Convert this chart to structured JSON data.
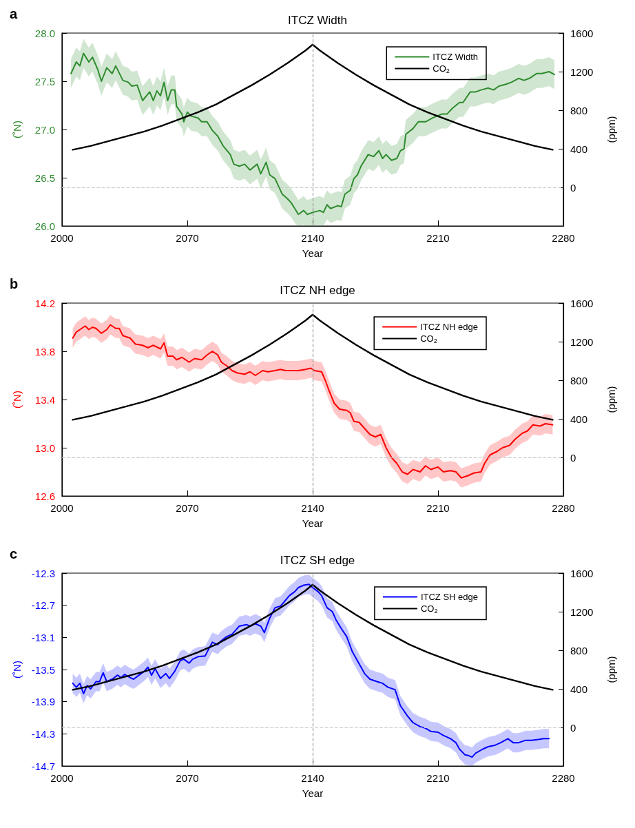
{
  "chart_data": [
    {
      "type": "line",
      "title": "ITCZ Width",
      "xlabel": "Year",
      "ylabel": "(˚N)",
      "y2label": "(ppm)",
      "annotations": [
        "a"
      ],
      "legend": "top right",
      "grid": false,
      "xlim": [
        2000,
        2280
      ],
      "xticks": [
        2000,
        2070,
        2140,
        2210,
        2280
      ],
      "ylim": [
        26,
        28
      ],
      "yticks": [
        {
          "value": 26,
          "label": "26.0"
        },
        26.5,
        {
          "value": 27,
          "label": "27.0"
        },
        27.5,
        {
          "value": 28,
          "label": "28.0"
        }
      ],
      "y2lim": [
        -400,
        1600
      ],
      "y2ticks": [
        0,
        400,
        800,
        1200,
        1600
      ],
      "ref_lines": [
        {
          "axis": "x",
          "value": 2140,
          "color": "#999999",
          "line_style": "dashed"
        },
        {
          "axis": "y2",
          "value": 0,
          "color": "#c8c8c8",
          "line_style": "dashed"
        }
      ],
      "series": [
        {
          "name": "ITCZ Width",
          "color": "#2e8b2e",
          "x": [
            2005,
            2008,
            2010,
            2012,
            2015,
            2017,
            2020,
            2022,
            2025,
            2028,
            2030,
            2034,
            2037,
            2039,
            2042,
            2045,
            2049,
            2051,
            2053,
            2055,
            2057,
            2059,
            2061,
            2063,
            2064,
            2067,
            2068,
            2070,
            2072,
            2076,
            2078,
            2081,
            2084,
            2087,
            2090,
            2094,
            2096,
            2099,
            2102,
            2105,
            2109,
            2111,
            2114,
            2116,
            2119,
            2121,
            2123,
            2126,
            2128,
            2130,
            2132,
            2135,
            2137,
            2140,
            2144,
            2146,
            2148,
            2150,
            2154,
            2156,
            2158,
            2161,
            2163,
            2165,
            2167,
            2171,
            2174,
            2177,
            2179,
            2181,
            2184,
            2187,
            2189,
            2191,
            2192,
            2196,
            2199,
            2203,
            2207,
            2212,
            2215,
            2218,
            2222,
            2224,
            2228,
            2231,
            2234,
            2238,
            2241,
            2244,
            2248,
            2251,
            2255,
            2258,
            2261,
            2265,
            2268,
            2272,
            2275
          ],
          "values": [
            27.58,
            27.7,
            27.66,
            27.79,
            27.7,
            27.75,
            27.62,
            27.5,
            27.64,
            27.58,
            27.66,
            27.51,
            27.49,
            27.45,
            27.46,
            27.3,
            27.39,
            27.3,
            27.4,
            27.35,
            27.49,
            27.3,
            27.41,
            27.41,
            27.24,
            27.16,
            27.08,
            27.18,
            27.14,
            27.12,
            27.08,
            27.08,
            26.99,
            26.93,
            26.83,
            26.74,
            26.64,
            26.62,
            26.64,
            26.58,
            26.64,
            26.54,
            26.66,
            26.53,
            26.49,
            26.41,
            26.33,
            26.28,
            26.24,
            26.18,
            26.12,
            26.16,
            26.12,
            26.14,
            26.16,
            26.14,
            26.22,
            26.18,
            26.21,
            26.2,
            26.33,
            26.37,
            26.49,
            26.53,
            26.62,
            26.74,
            26.72,
            26.78,
            26.7,
            26.74,
            26.68,
            26.7,
            26.78,
            26.8,
            26.95,
            27.01,
            27.08,
            27.08,
            27.12,
            27.16,
            27.16,
            27.22,
            27.28,
            27.28,
            27.39,
            27.39,
            27.41,
            27.43,
            27.41,
            27.45,
            27.47,
            27.49,
            27.53,
            27.51,
            27.53,
            27.58,
            27.58,
            27.6,
            27.57
          ],
          "lower": [
            27.43,
            27.55,
            27.51,
            27.64,
            27.55,
            27.6,
            27.47,
            27.35,
            27.49,
            27.43,
            27.51,
            27.36,
            27.34,
            27.3,
            27.31,
            27.15,
            27.24,
            27.15,
            27.25,
            27.2,
            27.34,
            27.15,
            27.26,
            27.26,
            27.09,
            27.01,
            26.93,
            27.03,
            26.99,
            26.97,
            26.93,
            26.93,
            26.84,
            26.78,
            26.68,
            26.59,
            26.49,
            26.47,
            26.49,
            26.43,
            26.49,
            26.39,
            26.51,
            26.38,
            26.34,
            26.26,
            26.18,
            26.13,
            26.09,
            26.03,
            26.0,
            26.01,
            26.0,
            26.0,
            26.01,
            26.0,
            26.07,
            26.03,
            26.06,
            26.05,
            26.18,
            26.22,
            26.34,
            26.38,
            26.47,
            26.59,
            26.57,
            26.63,
            26.55,
            26.59,
            26.53,
            26.55,
            26.63,
            26.65,
            26.8,
            26.86,
            26.93,
            26.93,
            26.97,
            27.01,
            27.01,
            27.07,
            27.13,
            27.13,
            27.24,
            27.24,
            27.26,
            27.28,
            27.26,
            27.3,
            27.32,
            27.34,
            27.38,
            27.36,
            27.38,
            27.43,
            27.43,
            27.45,
            27.42
          ],
          "upper": [
            27.73,
            27.85,
            27.81,
            27.94,
            27.85,
            27.9,
            27.77,
            27.65,
            27.79,
            27.73,
            27.81,
            27.66,
            27.64,
            27.6,
            27.61,
            27.45,
            27.54,
            27.45,
            27.55,
            27.5,
            27.64,
            27.45,
            27.56,
            27.56,
            27.39,
            27.31,
            27.23,
            27.33,
            27.29,
            27.27,
            27.23,
            27.23,
            27.14,
            27.08,
            26.98,
            26.89,
            26.79,
            26.77,
            26.79,
            26.73,
            26.79,
            26.69,
            26.81,
            26.68,
            26.64,
            26.56,
            26.48,
            26.43,
            26.39,
            26.33,
            26.27,
            26.31,
            26.27,
            26.29,
            26.31,
            26.29,
            26.37,
            26.33,
            26.36,
            26.35,
            26.48,
            26.52,
            26.64,
            26.68,
            26.77,
            26.89,
            26.87,
            26.93,
            26.85,
            26.89,
            26.83,
            26.85,
            26.93,
            26.95,
            27.1,
            27.16,
            27.23,
            27.23,
            27.27,
            27.31,
            27.31,
            27.37,
            27.43,
            27.43,
            27.54,
            27.54,
            27.56,
            27.58,
            27.56,
            27.6,
            27.62,
            27.64,
            27.68,
            27.66,
            27.68,
            27.73,
            27.73,
            27.75,
            27.72
          ]
        },
        {
          "name": "CO$_{2}$",
          "color": "#000000",
          "axis": "y2",
          "x": [
            2006,
            2016,
            2026,
            2036,
            2046,
            2056,
            2066,
            2076,
            2086,
            2096,
            2106,
            2116,
            2126,
            2136,
            2140,
            2144,
            2154,
            2164,
            2174,
            2184,
            2194,
            2204,
            2214,
            2224,
            2234,
            2244,
            2254,
            2264,
            2274
          ],
          "values": [
            390,
            430,
            480,
            530,
            580,
            640,
            710,
            780,
            860,
            960,
            1060,
            1170,
            1290,
            1420,
            1480,
            1420,
            1290,
            1170,
            1060,
            960,
            860,
            780,
            710,
            640,
            580,
            530,
            480,
            430,
            390
          ]
        }
      ]
    },
    {
      "type": "line",
      "title": "ITCZ NH edge",
      "xlabel": "Year",
      "ylabel": "(˚N)",
      "y2label": "(ppm)",
      "annotations": [
        "b"
      ],
      "legend": "top right",
      "grid": false,
      "xlim": [
        2000,
        2280
      ],
      "xticks": [
        2000,
        2070,
        2140,
        2210,
        2280
      ],
      "ylim": [
        12.6,
        14.2
      ],
      "yticks": [
        12.6,
        {
          "value": 13,
          "label": "13.0"
        },
        13.4,
        13.8,
        14.2
      ],
      "y2lim": [
        -400,
        1600
      ],
      "y2ticks": [
        0,
        400,
        800,
        1200,
        1600
      ],
      "ref_lines": [
        {
          "axis": "x",
          "value": 2140,
          "color": "#999999",
          "line_style": "dashed"
        },
        {
          "axis": "y2",
          "value": 0,
          "color": "#c8c8c8",
          "line_style": "dashed"
        }
      ],
      "series": [
        {
          "name": "ITCZ NH edge",
          "color": "#ff0000",
          "x": [
            2006,
            2008,
            2010,
            2013,
            2015,
            2017,
            2019,
            2022,
            2025,
            2027,
            2030,
            2032,
            2034,
            2038,
            2041,
            2045,
            2048,
            2051,
            2055,
            2057,
            2059,
            2062,
            2064,
            2067,
            2071,
            2074,
            2078,
            2081,
            2084,
            2087,
            2089,
            2092,
            2095,
            2098,
            2102,
            2105,
            2108,
            2112,
            2115,
            2119,
            2122,
            2125,
            2129,
            2132,
            2136,
            2139,
            2141,
            2145,
            2147,
            2149,
            2152,
            2155,
            2159,
            2161,
            2163,
            2166,
            2169,
            2172,
            2175,
            2178,
            2181,
            2184,
            2187,
            2190,
            2193,
            2196,
            2200,
            2203,
            2206,
            2210,
            2213,
            2217,
            2220,
            2223,
            2227,
            2230,
            2234,
            2236,
            2239,
            2243,
            2246,
            2250,
            2253,
            2257,
            2260,
            2263,
            2267,
            2270,
            2274
          ],
          "values": [
            13.91,
            13.96,
            13.98,
            14.01,
            13.98,
            14.0,
            13.99,
            13.95,
            13.98,
            14.02,
            13.99,
            13.99,
            13.93,
            13.91,
            13.86,
            13.85,
            13.83,
            13.85,
            13.82,
            13.87,
            13.76,
            13.76,
            13.73,
            13.75,
            13.71,
            13.74,
            13.73,
            13.77,
            13.8,
            13.77,
            13.71,
            13.68,
            13.64,
            13.62,
            13.61,
            13.63,
            13.6,
            13.64,
            13.63,
            13.64,
            13.65,
            13.64,
            13.64,
            13.64,
            13.65,
            13.66,
            13.64,
            13.63,
            13.56,
            13.48,
            13.37,
            13.32,
            13.31,
            13.29,
            13.22,
            13.21,
            13.16,
            13.11,
            13.09,
            13.11,
            13.0,
            12.92,
            12.87,
            12.8,
            12.78,
            12.82,
            12.8,
            12.85,
            12.82,
            12.84,
            12.8,
            12.81,
            12.8,
            12.75,
            12.77,
            12.79,
            12.8,
            12.87,
            12.94,
            12.97,
            13.0,
            13.02,
            13.07,
            13.12,
            13.14,
            13.19,
            13.18,
            13.2,
            13.19
          ],
          "lower": [
            13.83,
            13.88,
            13.9,
            13.93,
            13.9,
            13.92,
            13.91,
            13.87,
            13.9,
            13.94,
            13.91,
            13.91,
            13.85,
            13.83,
            13.78,
            13.77,
            13.75,
            13.77,
            13.74,
            13.79,
            13.68,
            13.68,
            13.65,
            13.67,
            13.63,
            13.66,
            13.65,
            13.69,
            13.72,
            13.69,
            13.63,
            13.6,
            13.56,
            13.54,
            13.53,
            13.55,
            13.52,
            13.56,
            13.55,
            13.56,
            13.57,
            13.56,
            13.56,
            13.56,
            13.57,
            13.58,
            13.56,
            13.55,
            13.48,
            13.4,
            13.29,
            13.24,
            13.23,
            13.21,
            13.14,
            13.13,
            13.08,
            13.03,
            13.01,
            13.03,
            12.92,
            12.84,
            12.79,
            12.72,
            12.7,
            12.74,
            12.72,
            12.77,
            12.74,
            12.76,
            12.72,
            12.73,
            12.72,
            12.67,
            12.69,
            12.71,
            12.72,
            12.79,
            12.86,
            12.89,
            12.92,
            12.94,
            12.99,
            13.04,
            13.06,
            13.11,
            13.1,
            13.12,
            13.11
          ],
          "upper": [
            13.99,
            14.04,
            14.06,
            14.09,
            14.06,
            14.08,
            14.07,
            14.03,
            14.06,
            14.1,
            14.07,
            14.07,
            14.01,
            13.99,
            13.94,
            13.93,
            13.91,
            13.93,
            13.9,
            13.95,
            13.84,
            13.84,
            13.81,
            13.83,
            13.79,
            13.82,
            13.81,
            13.85,
            13.88,
            13.85,
            13.79,
            13.76,
            13.72,
            13.7,
            13.69,
            13.71,
            13.68,
            13.72,
            13.71,
            13.72,
            13.73,
            13.72,
            13.72,
            13.72,
            13.73,
            13.74,
            13.72,
            13.71,
            13.64,
            13.56,
            13.45,
            13.4,
            13.39,
            13.37,
            13.3,
            13.29,
            13.24,
            13.19,
            13.17,
            13.19,
            13.08,
            13.0,
            12.95,
            12.88,
            12.86,
            12.9,
            12.88,
            12.93,
            12.9,
            12.92,
            12.88,
            12.89,
            12.88,
            12.83,
            12.85,
            12.87,
            12.88,
            12.95,
            13.02,
            13.05,
            13.08,
            13.1,
            13.15,
            13.2,
            13.22,
            13.27,
            13.26,
            13.28,
            13.27
          ]
        },
        {
          "name": "CO$_{2}$",
          "color": "#000000",
          "axis": "y2",
          "x": [
            2006,
            2016,
            2026,
            2036,
            2046,
            2056,
            2066,
            2076,
            2086,
            2096,
            2106,
            2116,
            2126,
            2136,
            2140,
            2144,
            2154,
            2164,
            2174,
            2184,
            2194,
            2204,
            2214,
            2224,
            2234,
            2244,
            2254,
            2264,
            2274
          ],
          "values": [
            390,
            430,
            480,
            530,
            580,
            640,
            710,
            780,
            860,
            960,
            1060,
            1170,
            1290,
            1420,
            1480,
            1420,
            1290,
            1170,
            1060,
            960,
            860,
            780,
            710,
            640,
            580,
            530,
            480,
            430,
            390
          ]
        }
      ]
    },
    {
      "type": "line",
      "title": "ITCZ SH edge",
      "xlabel": "Year",
      "ylabel": "(˚N)",
      "y2label": "(ppm)",
      "annotations": [
        "c"
      ],
      "legend": "top right",
      "grid": false,
      "xlim": [
        2000,
        2280
      ],
      "xticks": [
        2000,
        2070,
        2140,
        2210,
        2280
      ],
      "ylim": [
        -14.7,
        -12.3
      ],
      "yticks": [
        -14.7,
        -14.3,
        -13.9,
        -13.5,
        -13.1,
        -12.7,
        -12.3
      ],
      "y2lim": [
        -400,
        1600
      ],
      "y2ticks": [
        0,
        400,
        800,
        1200,
        1600
      ],
      "ref_lines": [
        {
          "axis": "x",
          "value": 2140,
          "color": "#999999",
          "line_style": "dashed"
        },
        {
          "axis": "y2",
          "value": 0,
          "color": "#c8c8c8",
          "line_style": "dashed"
        }
      ],
      "series": [
        {
          "name": "ITCZ SH edge",
          "color": "#0000ff",
          "x": [
            2006,
            2008,
            2010,
            2012,
            2014,
            2016,
            2019,
            2021,
            2023,
            2025,
            2028,
            2031,
            2033,
            2035,
            2038,
            2040,
            2043,
            2046,
            2048,
            2050,
            2052,
            2055,
            2058,
            2060,
            2063,
            2066,
            2068,
            2071,
            2073,
            2076,
            2080,
            2082,
            2084,
            2087,
            2089,
            2092,
            2095,
            2097,
            2099,
            2103,
            2105,
            2108,
            2111,
            2113,
            2116,
            2119,
            2122,
            2124,
            2127,
            2130,
            2132,
            2135,
            2138,
            2140,
            2143,
            2145,
            2148,
            2151,
            2153,
            2156,
            2159,
            2162,
            2165,
            2169,
            2172,
            2176,
            2179,
            2182,
            2186,
            2189,
            2193,
            2196,
            2200,
            2203,
            2206,
            2210,
            2213,
            2217,
            2220,
            2222,
            2225,
            2227,
            2229,
            2231,
            2235,
            2238,
            2242,
            2245,
            2249,
            2252,
            2255,
            2259,
            2262,
            2266,
            2269,
            2272
          ],
          "values": [
            -13.67,
            -13.72,
            -13.67,
            -13.8,
            -13.7,
            -13.74,
            -13.65,
            -13.65,
            -13.54,
            -13.65,
            -13.62,
            -13.57,
            -13.6,
            -13.56,
            -13.6,
            -13.62,
            -13.57,
            -13.52,
            -13.47,
            -13.57,
            -13.49,
            -13.61,
            -13.55,
            -13.61,
            -13.52,
            -13.39,
            -13.37,
            -13.42,
            -13.37,
            -13.34,
            -13.33,
            -13.24,
            -13.16,
            -13.19,
            -13.14,
            -13.09,
            -13.06,
            -13.01,
            -12.96,
            -12.94,
            -12.96,
            -12.93,
            -12.96,
            -13.04,
            -12.86,
            -12.73,
            -12.71,
            -12.66,
            -12.58,
            -12.53,
            -12.48,
            -12.45,
            -12.44,
            -12.48,
            -12.53,
            -12.58,
            -12.73,
            -12.78,
            -12.88,
            -12.99,
            -13.09,
            -13.27,
            -13.39,
            -13.55,
            -13.62,
            -13.65,
            -13.67,
            -13.72,
            -13.75,
            -13.95,
            -14.08,
            -14.16,
            -14.21,
            -14.23,
            -14.27,
            -14.28,
            -14.32,
            -14.36,
            -14.41,
            -14.49,
            -14.56,
            -14.57,
            -14.59,
            -14.54,
            -14.49,
            -14.46,
            -14.44,
            -14.41,
            -14.36,
            -14.41,
            -14.41,
            -14.38,
            -14.38,
            -14.37,
            -14.36,
            -14.36
          ],
          "lower": [
            -13.79,
            -13.84,
            -13.79,
            -13.92,
            -13.82,
            -13.86,
            -13.77,
            -13.77,
            -13.66,
            -13.77,
            -13.74,
            -13.69,
            -13.72,
            -13.68,
            -13.72,
            -13.74,
            -13.69,
            -13.64,
            -13.59,
            -13.69,
            -13.61,
            -13.73,
            -13.67,
            -13.73,
            -13.64,
            -13.51,
            -13.49,
            -13.54,
            -13.49,
            -13.46,
            -13.45,
            -13.36,
            -13.28,
            -13.31,
            -13.26,
            -13.21,
            -13.18,
            -13.13,
            -13.08,
            -13.06,
            -13.08,
            -13.05,
            -13.08,
            -13.16,
            -12.98,
            -12.85,
            -12.83,
            -12.78,
            -12.7,
            -12.65,
            -12.6,
            -12.57,
            -12.56,
            -12.6,
            -12.65,
            -12.7,
            -12.85,
            -12.9,
            -13.0,
            -13.11,
            -13.21,
            -13.39,
            -13.51,
            -13.67,
            -13.74,
            -13.77,
            -13.79,
            -13.84,
            -13.87,
            -14.07,
            -14.2,
            -14.28,
            -14.33,
            -14.35,
            -14.39,
            -14.4,
            -14.44,
            -14.48,
            -14.53,
            -14.61,
            -14.68,
            -14.69,
            -14.7,
            -14.66,
            -14.61,
            -14.58,
            -14.56,
            -14.53,
            -14.48,
            -14.53,
            -14.53,
            -14.5,
            -14.5,
            -14.49,
            -14.48,
            -14.48
          ],
          "upper": [
            -13.55,
            -13.6,
            -13.55,
            -13.68,
            -13.58,
            -13.62,
            -13.53,
            -13.53,
            -13.42,
            -13.53,
            -13.5,
            -13.45,
            -13.48,
            -13.44,
            -13.48,
            -13.5,
            -13.45,
            -13.4,
            -13.35,
            -13.45,
            -13.37,
            -13.49,
            -13.43,
            -13.49,
            -13.4,
            -13.27,
            -13.25,
            -13.3,
            -13.25,
            -13.22,
            -13.21,
            -13.12,
            -13.04,
            -13.07,
            -13.02,
            -12.97,
            -12.94,
            -12.89,
            -12.84,
            -12.82,
            -12.84,
            -12.81,
            -12.84,
            -12.92,
            -12.74,
            -12.61,
            -12.59,
            -12.54,
            -12.46,
            -12.41,
            -12.36,
            -12.33,
            -12.32,
            -12.36,
            -12.41,
            -12.46,
            -12.61,
            -12.66,
            -12.76,
            -12.87,
            -12.97,
            -13.15,
            -13.27,
            -13.43,
            -13.5,
            -13.53,
            -13.55,
            -13.6,
            -13.63,
            -13.83,
            -13.96,
            -14.04,
            -14.09,
            -14.11,
            -14.15,
            -14.16,
            -14.2,
            -14.24,
            -14.29,
            -14.37,
            -14.44,
            -14.45,
            -14.47,
            -14.42,
            -14.37,
            -14.34,
            -14.32,
            -14.29,
            -14.24,
            -14.29,
            -14.29,
            -14.26,
            -14.26,
            -14.25,
            -14.24,
            -14.24
          ]
        },
        {
          "name": "CO$_{2}$",
          "color": "#000000",
          "axis": "y2",
          "x": [
            2006,
            2016,
            2026,
            2036,
            2046,
            2056,
            2066,
            2076,
            2086,
            2096,
            2106,
            2116,
            2126,
            2136,
            2140,
            2144,
            2154,
            2164,
            2174,
            2184,
            2194,
            2204,
            2214,
            2224,
            2234,
            2244,
            2254,
            2264,
            2274
          ],
          "values": [
            390,
            430,
            480,
            530,
            580,
            640,
            710,
            780,
            860,
            960,
            1060,
            1170,
            1290,
            1420,
            1480,
            1420,
            1290,
            1170,
            1060,
            960,
            860,
            780,
            710,
            640,
            580,
            530,
            480,
            430,
            390
          ]
        }
      ]
    }
  ]
}
